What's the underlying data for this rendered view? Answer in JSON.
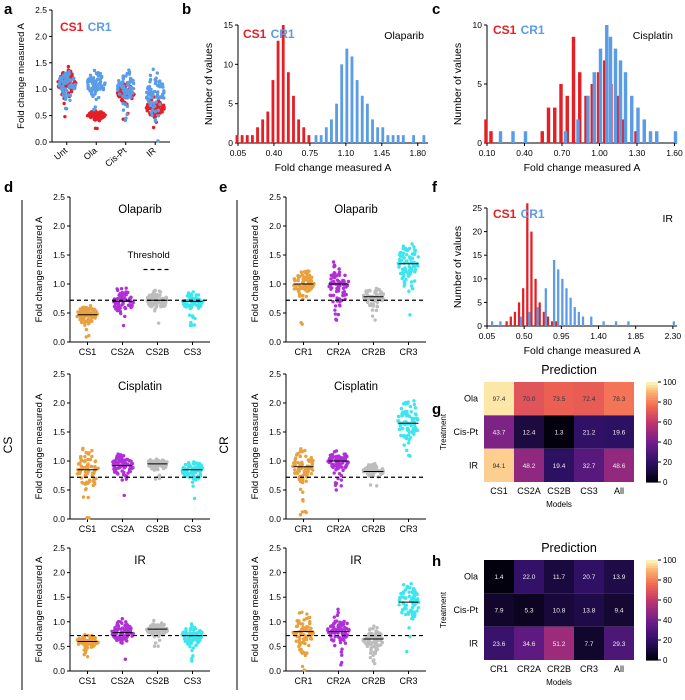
{
  "figure": {
    "ylabel_fold": "Fold change measured A",
    "xlabel_fold": "Fold change measured A",
    "ylabel_count": "Number of values",
    "threshold_label": "Threshold",
    "side_cs": "CS",
    "side_cr": "CR",
    "legend_cs1": "CS1",
    "legend_cr1": "CR1"
  },
  "colors": {
    "red": "#e41f26",
    "blue": "#5b9ce6",
    "orange": "#e8a040",
    "purple": "#b030d8",
    "grey": "#bdbdbd",
    "cyan": "#3ce6ee"
  },
  "chart_data": [
    {
      "panel": "a",
      "type": "scatter",
      "title": "",
      "ylabel": "Fold change measured A",
      "categories": [
        "Unt",
        "Ola",
        "Cis-Pt",
        "IR"
      ],
      "ylim": [
        0,
        2.5
      ],
      "yticks": [
        "0.0",
        "0.5",
        "1.0",
        "1.5",
        "2.0",
        "2.5"
      ],
      "legend": [
        "CS1",
        "CR1"
      ],
      "series": [
        {
          "name": "CS1",
          "color": "#e41f26",
          "centers": [
            1.1,
            0.5,
            0.95,
            0.65
          ],
          "spreads": [
            0.2,
            0.08,
            0.15,
            0.12
          ]
        },
        {
          "name": "CR1",
          "color": "#5b9ce6",
          "centers": [
            1.1,
            1.1,
            1.05,
            0.9
          ],
          "spreads": [
            0.2,
            0.2,
            0.2,
            0.35
          ]
        }
      ]
    },
    {
      "panel": "b",
      "type": "bar",
      "title": "Olaparib",
      "xlabel": "Fold change measured A",
      "ylabel": "Number of values",
      "xlim": [
        0.05,
        1.9
      ],
      "ylim": [
        0,
        15
      ],
      "xticks": [
        "0.05",
        "0.40",
        "0.75",
        "1.10",
        "1.45",
        "1.80"
      ],
      "yticks": [
        "0",
        "5",
        "10",
        "15"
      ],
      "legend": [
        "CS1",
        "CR1"
      ],
      "series": [
        {
          "name": "CS1",
          "color": "#e41f26",
          "x": [
            0.05,
            0.1,
            0.15,
            0.2,
            0.25,
            0.3,
            0.35,
            0.4,
            0.45,
            0.5,
            0.55,
            0.6,
            0.65,
            0.7,
            0.75
          ],
          "values": [
            1,
            1,
            1,
            1,
            2,
            3,
            4,
            8,
            13,
            15,
            9,
            6,
            3,
            2,
            1
          ]
        },
        {
          "name": "CR1",
          "color": "#5b9ce6",
          "x": [
            0.8,
            0.85,
            0.9,
            0.95,
            1.0,
            1.05,
            1.1,
            1.15,
            1.2,
            1.25,
            1.3,
            1.35,
            1.4,
            1.45,
            1.5,
            1.55,
            1.6,
            1.65,
            1.75,
            1.85
          ],
          "values": [
            1,
            1,
            2,
            3,
            5,
            10,
            12,
            11,
            8,
            6,
            5,
            3,
            2,
            2,
            1,
            1,
            1,
            1,
            1,
            1
          ]
        }
      ]
    },
    {
      "panel": "c",
      "type": "bar",
      "title": "Cisplatin",
      "xlabel": "Fold change measured A",
      "ylabel": "Number of values",
      "xlim": [
        0.1,
        1.62
      ],
      "ylim": [
        0,
        10
      ],
      "xticks": [
        "0.10",
        "0.40",
        "0.70",
        "1.00",
        "1.30",
        "1.60"
      ],
      "yticks": [
        "0",
        "5",
        "10"
      ],
      "legend": [
        "CS1",
        "CR1"
      ],
      "series": [
        {
          "name": "CS1",
          "color": "#e41f26",
          "x": [
            0.1,
            0.14,
            0.55,
            0.6,
            0.65,
            0.7,
            0.75,
            0.8,
            0.85,
            0.9,
            0.95,
            1.0,
            1.05,
            1.1,
            1.15,
            1.2,
            1.3
          ],
          "values": [
            2,
            1,
            1,
            3,
            3,
            5,
            4,
            9,
            6,
            4,
            5,
            6,
            7,
            5,
            4,
            2,
            1
          ]
        },
        {
          "name": "CR1",
          "color": "#5b9ce6",
          "x": [
            0.2,
            0.3,
            0.4,
            0.72,
            0.82,
            0.9,
            0.95,
            1.0,
            1.05,
            1.08,
            1.12,
            1.16,
            1.2,
            1.25,
            1.3,
            1.35,
            1.4,
            1.45,
            1.6
          ],
          "values": [
            1,
            1,
            1,
            1,
            2,
            4,
            6,
            8,
            10,
            9,
            8,
            7,
            6,
            4,
            3,
            2,
            1,
            1,
            1
          ]
        }
      ]
    },
    {
      "panel": "f",
      "type": "bar",
      "title": "IR",
      "xlabel": "Fold change measured A",
      "ylabel": "Number of values",
      "xlim": [
        0.05,
        2.35
      ],
      "ylim": [
        0,
        25
      ],
      "xticks": [
        "0.05",
        "0.50",
        "0.95",
        "1.40",
        "1.85",
        "2.30"
      ],
      "yticks": [
        "0",
        "5",
        "10",
        "15",
        "20",
        "25"
      ],
      "legend": [
        "CS1",
        "CR1"
      ],
      "series": [
        {
          "name": "CS1",
          "color": "#e41f26",
          "x": [
            0.3,
            0.35,
            0.4,
            0.45,
            0.5,
            0.55,
            0.6,
            0.65,
            0.7,
            0.75,
            0.8,
            0.85,
            0.9
          ],
          "values": [
            1,
            2,
            3,
            5,
            8,
            26,
            20,
            10,
            5,
            3,
            2,
            1,
            1
          ]
        },
        {
          "name": "CR1",
          "color": "#5b9ce6",
          "x": [
            0.1,
            0.2,
            0.45,
            0.55,
            0.65,
            0.75,
            0.85,
            0.9,
            0.95,
            1.0,
            1.05,
            1.1,
            1.15,
            1.2,
            1.3,
            1.45,
            1.6,
            1.75,
            2.3
          ],
          "values": [
            1,
            1,
            2,
            3,
            4,
            8,
            14,
            12,
            10,
            8,
            6,
            4,
            3,
            2,
            2,
            1,
            1,
            1,
            1
          ]
        }
      ]
    },
    {
      "panel": "d-ola",
      "type": "scatter",
      "title": "Olaparib",
      "ylabel": "Fold change measured A",
      "categories": [
        "CS1",
        "CS2A",
        "CS2B",
        "CS3"
      ],
      "ylim": [
        0,
        2.5
      ],
      "yticks": [
        "0.0",
        "0.5",
        "1.0",
        "1.5",
        "2.0",
        "2.5"
      ],
      "threshold": 0.72,
      "annotation": "Threshold",
      "colors": [
        "#e8a040",
        "#b030d8",
        "#bdbdbd",
        "#3ce6ee"
      ],
      "centers": [
        0.47,
        0.7,
        0.72,
        0.7
      ],
      "spreads": [
        0.12,
        0.18,
        0.12,
        0.12
      ]
    },
    {
      "panel": "d-cis",
      "type": "scatter",
      "title": "Cisplatin",
      "ylabel": "Fold change measured A",
      "categories": [
        "CS1",
        "CS2A",
        "CS2B",
        "CS3"
      ],
      "ylim": [
        0,
        2.5
      ],
      "yticks": [
        "0.0",
        "0.5",
        "1.0",
        "1.5",
        "2.0",
        "2.5"
      ],
      "threshold": 0.72,
      "colors": [
        "#e8a040",
        "#b030d8",
        "#bdbdbd",
        "#3ce6ee"
      ],
      "centers": [
        0.85,
        0.92,
        0.95,
        0.85
      ],
      "spreads": [
        0.3,
        0.15,
        0.08,
        0.15
      ]
    },
    {
      "panel": "d-ir",
      "type": "scatter",
      "title": "IR",
      "ylabel": "Fold change measured A",
      "categories": [
        "CS1",
        "CS2A",
        "CS2B",
        "CS3"
      ],
      "ylim": [
        0,
        2.5
      ],
      "yticks": [
        "0.0",
        "0.5",
        "1.0",
        "1.5",
        "2.0",
        "2.5"
      ],
      "threshold": 0.72,
      "colors": [
        "#e8a040",
        "#b030d8",
        "#bdbdbd",
        "#3ce6ee"
      ],
      "centers": [
        0.6,
        0.78,
        0.85,
        0.72
      ],
      "spreads": [
        0.12,
        0.18,
        0.1,
        0.15
      ]
    },
    {
      "panel": "e-ola",
      "type": "scatter",
      "title": "Olaparib",
      "ylabel": "Fold change measured A",
      "categories": [
        "CR1",
        "CR2A",
        "CR2B",
        "CR3"
      ],
      "ylim": [
        0,
        2.5
      ],
      "yticks": [
        "0.0",
        "0.5",
        "1.0",
        "1.5",
        "2.0",
        "2.5"
      ],
      "threshold": 0.72,
      "colors": [
        "#e8a040",
        "#b030d8",
        "#bdbdbd",
        "#3ce6ee"
      ],
      "centers": [
        1.0,
        1.0,
        0.78,
        1.35
      ],
      "spreads": [
        0.2,
        0.3,
        0.12,
        0.3
      ]
    },
    {
      "panel": "e-cis",
      "type": "scatter",
      "title": "Cisplatin",
      "ylabel": "Fold change measured A",
      "categories": [
        "CR1",
        "CR2A",
        "CR2B",
        "CR3"
      ],
      "ylim": [
        0,
        2.5
      ],
      "yticks": [
        "0.0",
        "0.5",
        "1.0",
        "1.5",
        "2.0",
        "2.5"
      ],
      "threshold": 0.72,
      "colors": [
        "#e8a040",
        "#b030d8",
        "#bdbdbd",
        "#3ce6ee"
      ],
      "centers": [
        0.9,
        1.0,
        0.82,
        1.65
      ],
      "spreads": [
        0.25,
        0.15,
        0.08,
        0.35
      ]
    },
    {
      "panel": "e-ir",
      "type": "scatter",
      "title": "IR",
      "ylabel": "Fold change measured A",
      "categories": [
        "CR1",
        "CR2A",
        "CR2B",
        "CR3"
      ],
      "ylim": [
        0,
        2.5
      ],
      "yticks": [
        "0.0",
        "0.5",
        "1.0",
        "1.5",
        "2.0",
        "2.5"
      ],
      "threshold": 0.72,
      "colors": [
        "#e8a040",
        "#b030d8",
        "#bdbdbd",
        "#3ce6ee"
      ],
      "centers": [
        0.8,
        0.8,
        0.65,
        1.4
      ],
      "spreads": [
        0.3,
        0.3,
        0.15,
        0.3
      ]
    },
    {
      "panel": "g",
      "type": "heatmap",
      "title": "Prediction",
      "xlabel": "Models",
      "ylabel": "Treatment",
      "rows": [
        "Ola",
        "Cis-Pt",
        "IR"
      ],
      "cols": [
        "CS1",
        "CS2A",
        "CS2B",
        "CS3",
        "All"
      ],
      "values": [
        [
          97.4,
          70.0,
          73.5,
          72.4,
          78.3
        ],
        [
          43.7,
          12.4,
          1.3,
          21.2,
          19.6
        ],
        [
          94.1,
          48.2,
          19.4,
          32.7,
          48.6
        ]
      ],
      "cell_labels": [
        [
          "97.4",
          "70.0",
          "73.5",
          "72.4",
          "78.3"
        ],
        [
          "43.7",
          "12.4",
          "1.3",
          "21.2",
          "19.6"
        ],
        [
          "94.1",
          "48.2",
          "19.4",
          "32.7",
          "48.6"
        ]
      ],
      "colorbar_ticks": [
        "0",
        "20",
        "40",
        "60",
        "80",
        "100"
      ],
      "range": [
        0,
        100
      ]
    },
    {
      "panel": "h",
      "type": "heatmap",
      "title": "Prediction",
      "xlabel": "Models",
      "ylabel": "Treatment",
      "rows": [
        "Ola",
        "Cis-Pt",
        "IR"
      ],
      "cols": [
        "CR1",
        "CR2A",
        "CR2B",
        "CR3",
        "All"
      ],
      "values": [
        [
          1.4,
          22.0,
          11.7,
          20.7,
          13.9
        ],
        [
          7.9,
          5.3,
          10.8,
          13.8,
          9.4
        ],
        [
          23.6,
          34.6,
          51.2,
          7.7,
          29.3
        ]
      ],
      "cell_labels": [
        [
          "1.4",
          "22.0",
          "11.7",
          "20.7",
          "13.9"
        ],
        [
          "7.9",
          "5.3",
          "10.8",
          "13.8",
          "9.4"
        ],
        [
          "23.6",
          "34.6",
          "51.2",
          "7.7",
          "29.3"
        ]
      ],
      "colorbar_ticks": [
        "0",
        "20",
        "40",
        "60",
        "80",
        "100"
      ],
      "range": [
        0,
        100
      ]
    }
  ]
}
